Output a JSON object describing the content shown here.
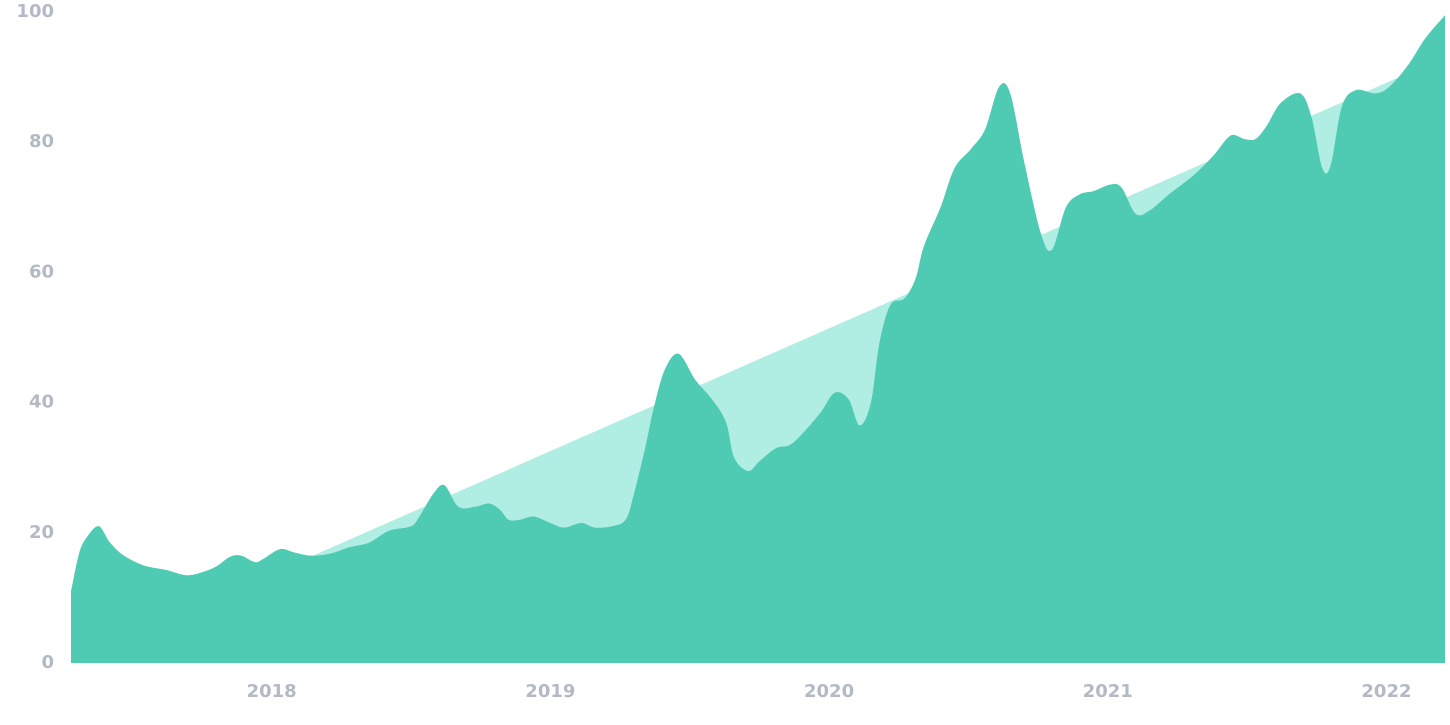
{
  "chart_data": {
    "type": "area",
    "xlim": [
      2017.28,
      2022.21
    ],
    "xticks": [
      2018,
      2019,
      2020,
      2021,
      2022
    ],
    "ylim": [
      0,
      100
    ],
    "yticks": [
      0,
      20,
      40,
      60,
      80,
      100
    ],
    "grid": false,
    "smooth": true,
    "series": [
      {
        "color": "#b0ede3",
        "x": [
          2017.28,
          2022.21
        ],
        "values": [
          0.1,
          93.1
        ]
      },
      {
        "color": "#4fcbb3",
        "x": [
          2017.28,
          2017.31,
          2017.34,
          2017.38,
          2017.42,
          2017.47,
          2017.54,
          2017.62,
          2017.69,
          2017.74,
          2017.8,
          2017.85,
          2017.89,
          2017.94,
          2017.97,
          2018.03,
          2018.08,
          2018.14,
          2018.21,
          2018.28,
          2018.35,
          2018.42,
          2018.5,
          2018.53,
          2018.58,
          2018.62,
          2018.67,
          2018.73,
          2018.78,
          2018.82,
          2018.85,
          2018.89,
          2018.94,
          2019.0,
          2019.05,
          2019.11,
          2019.16,
          2019.22,
          2019.27,
          2019.3,
          2019.34,
          2019.37,
          2019.41,
          2019.46,
          2019.52,
          2019.58,
          2019.63,
          2019.66,
          2019.71,
          2019.75,
          2019.81,
          2019.86,
          2019.91,
          2019.97,
          2020.02,
          2020.07,
          2020.11,
          2020.15,
          2020.18,
          2020.22,
          2020.27,
          2020.31,
          2020.34,
          2020.4,
          2020.45,
          2020.51,
          2020.56,
          2020.61,
          2020.65,
          2020.7,
          2020.76,
          2020.8,
          2020.85,
          2020.9,
          2020.95,
          2021.01,
          2021.05,
          2021.1,
          2021.15,
          2021.22,
          2021.31,
          2021.38,
          2021.44,
          2021.49,
          2021.53,
          2021.57,
          2021.62,
          2021.69,
          2021.73,
          2021.77,
          2021.8,
          2021.84,
          2021.89,
          2021.96,
          2022.01,
          2022.08,
          2022.14,
          2022.21
        ],
        "values": [
          11,
          17,
          19.5,
          21,
          18.5,
          16.5,
          15,
          14.3,
          13.5,
          13.8,
          14.8,
          16.3,
          16.5,
          15.5,
          16,
          17.5,
          17,
          16.5,
          16.8,
          17.8,
          18.5,
          20.3,
          21,
          22.5,
          26,
          27.3,
          24,
          24,
          24.5,
          23.5,
          22,
          22,
          22.5,
          21.5,
          20.8,
          21.5,
          20.8,
          21,
          22,
          26,
          33,
          39,
          45,
          47.5,
          43.5,
          40.5,
          37,
          31.5,
          29.5,
          31,
          33,
          33.5,
          35.5,
          38.5,
          41.5,
          40.5,
          36.5,
          40,
          49,
          55,
          56,
          59,
          64,
          70,
          76,
          79,
          82,
          88.5,
          87.5,
          77,
          66,
          63.5,
          70,
          72,
          72.5,
          73.5,
          73,
          69,
          69.5,
          72,
          75,
          78,
          81,
          80.5,
          80.5,
          82.5,
          86,
          87.5,
          84,
          76,
          76.5,
          85.5,
          88,
          87.5,
          88.5,
          92,
          96,
          99.5
        ]
      }
    ]
  }
}
